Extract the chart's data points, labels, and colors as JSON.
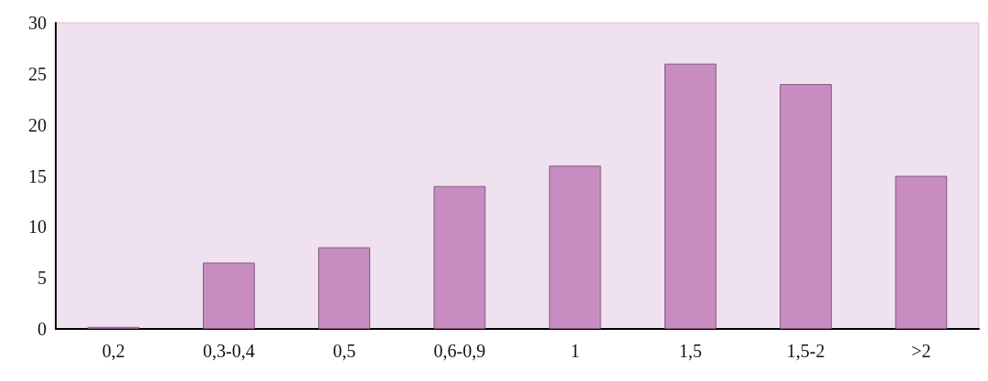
{
  "chart_data": {
    "type": "bar",
    "categories": [
      "0,2",
      "0,3-0,4",
      "0,5",
      "0,6-0,9",
      "1",
      "1,5",
      "1,5-2",
      ">2"
    ],
    "values": [
      0.2,
      6.5,
      8,
      14,
      16,
      26,
      24,
      15
    ],
    "color": "#c88cc0",
    "ylim": [
      0,
      30
    ],
    "yticks": [
      0,
      5,
      10,
      15,
      20,
      25,
      30
    ],
    "grid": false
  }
}
